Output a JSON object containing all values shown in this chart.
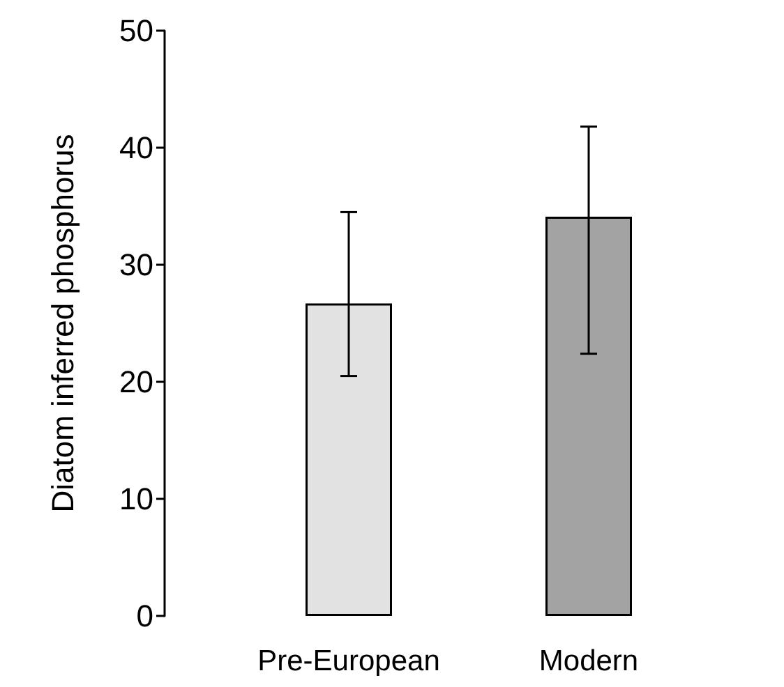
{
  "chart_data": {
    "type": "bar",
    "ylabel": "Diatom inferred phosphorus",
    "categories": [
      "Pre-European",
      "Modern"
    ],
    "values": [
      26.7,
      34.1
    ],
    "colors": [
      "#e2e2e2",
      "#a3a3a3"
    ],
    "errors": [
      [
        20.5,
        34.5
      ],
      [
        22.4,
        41.8
      ]
    ],
    "ylim": [
      0,
      50
    ],
    "yticks": [
      0,
      10,
      20,
      30,
      40,
      50
    ]
  }
}
